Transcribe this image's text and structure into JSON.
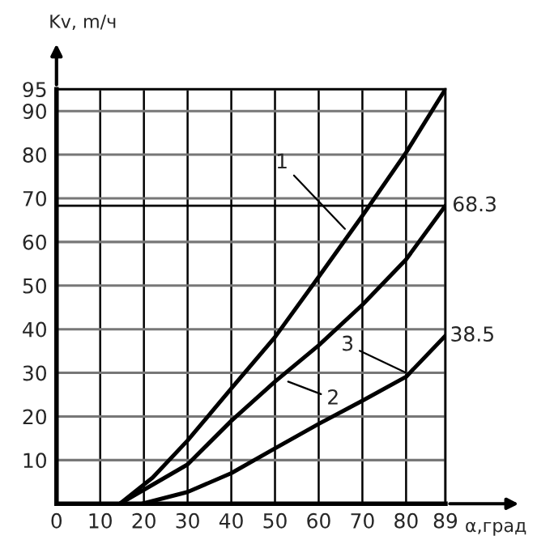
{
  "chart_data": {
    "type": "line",
    "xlabel": "α,град",
    "ylabel": "Kv, m/ч",
    "series": [
      {
        "color": "#000000",
        "x": [
          14.5,
          22,
          30,
          40,
          50,
          60,
          70,
          80,
          89
        ],
        "values": [
          0,
          6,
          14.5,
          26.4,
          38.2,
          52,
          66,
          80.5,
          95
        ]
      },
      {
        "color": "#000000",
        "x": [
          14.5,
          30,
          40,
          50,
          60,
          70,
          80,
          89
        ],
        "values": [
          0,
          9,
          19,
          28,
          36.3,
          45.6,
          56,
          68.3
        ]
      },
      {
        "color": "#000000",
        "x": [
          19.6,
          30,
          40,
          50,
          60,
          70,
          80,
          89
        ],
        "values": [
          0,
          2.7,
          7,
          12.7,
          18.3,
          23.6,
          29.1,
          38.5
        ]
      }
    ],
    "xlim": [
      0,
      89
    ],
    "ylim": [
      0,
      95
    ],
    "xticks": [
      0,
      10,
      20,
      30,
      40,
      50,
      60,
      70,
      80,
      89
    ],
    "yticks": [
      10,
      20,
      30,
      40,
      50,
      60,
      70,
      80,
      90,
      95
    ],
    "grid": true,
    "marker": "none",
    "line_style": "solid",
    "legend": false,
    "ref_lines": [
      {
        "axis": "y",
        "value": 68.3,
        "label": "68.3",
        "color": "#000000"
      }
    ],
    "annotations": [
      {
        "text": "1",
        "x": 66,
        "y": 63
      },
      {
        "text": "2",
        "x": 53,
        "y": 28
      },
      {
        "text": "3",
        "x": 80,
        "y": 30
      },
      {
        "text": "38.5",
        "x": 89,
        "y": 38.5
      }
    ]
  }
}
